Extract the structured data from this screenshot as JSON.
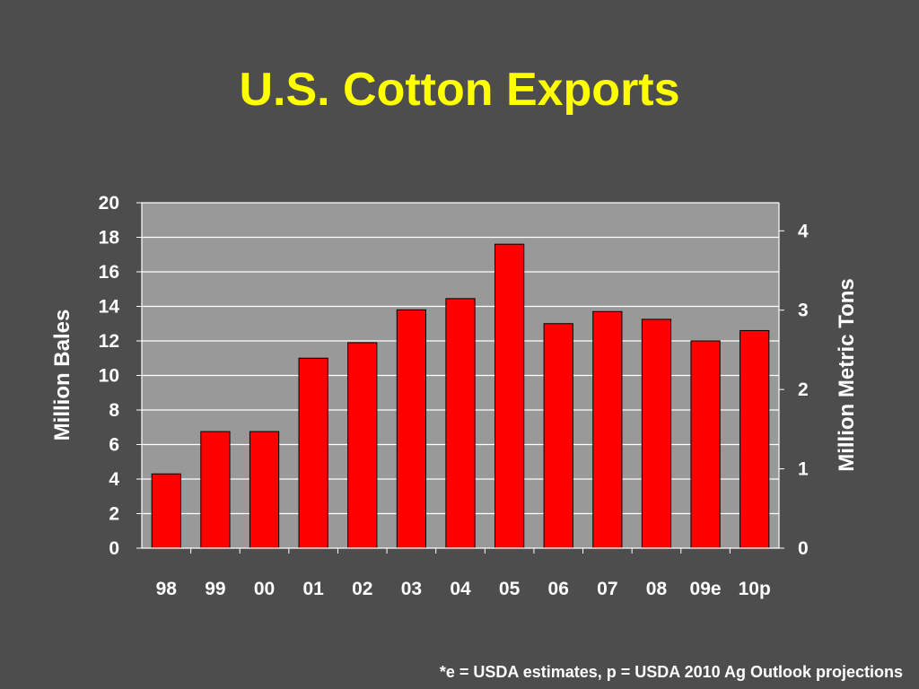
{
  "slide": {
    "title": "U.S. Cotton Exports",
    "footnote": "*e = USDA estimates, p = USDA 2010 Ag Outlook projections"
  },
  "colors": {
    "background": "#4d4d4d",
    "plot_area": "#999999",
    "bar": "#ff0000",
    "title": "#ffff00",
    "text": "#ffffff"
  },
  "chart_data": {
    "type": "bar",
    "title": "U.S. Cotton Exports",
    "categories": [
      "98",
      "99",
      "00",
      "01",
      "02",
      "03",
      "04",
      "05",
      "06",
      "07",
      "08",
      "09e",
      "10p"
    ],
    "values": [
      4.3,
      6.75,
      6.75,
      11.0,
      11.9,
      13.8,
      14.45,
      17.6,
      13.0,
      13.7,
      13.25,
      12.0,
      12.6
    ],
    "ylabel": "Million Bales",
    "ylim": [
      0,
      20
    ],
    "yticks": [
      "0",
      "2",
      "4",
      "6",
      "8",
      "10",
      "12",
      "14",
      "16",
      "18",
      "20"
    ],
    "y2label": "Million Metric Tons",
    "y2lim": [
      0,
      4.354
    ],
    "y2ticks": [
      "0",
      "1",
      "2",
      "3",
      "4"
    ],
    "grid": true
  }
}
